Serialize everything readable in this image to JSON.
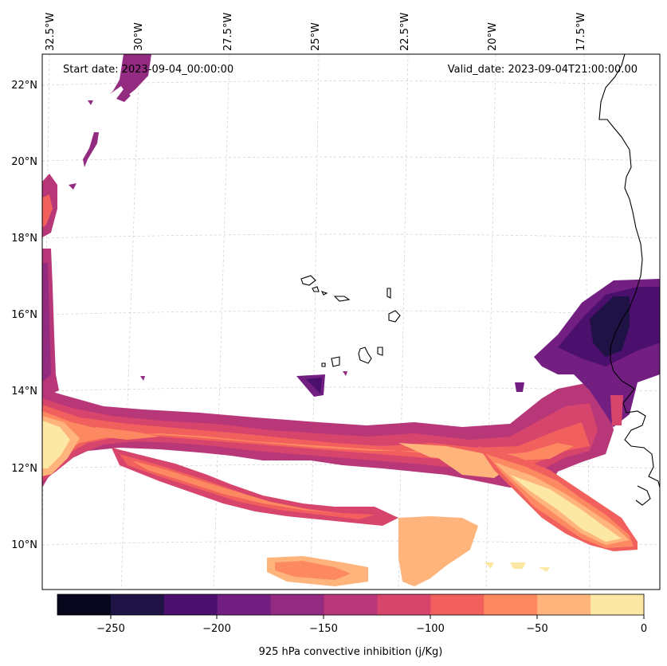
{
  "header": {
    "start_date": "Start date: 2023-09-04_00:00:00",
    "valid_date": "Valid_date: 2023-09-04T21:00:00.00"
  },
  "longitude_labels": [
    "32.5°W",
    "30°W",
    "27.5°W",
    "25°W",
    "22.5°W",
    "20°W",
    "17.5°W"
  ],
  "latitude_labels": [
    "22°N",
    "20°N",
    "18°N",
    "16°N",
    "14°N",
    "12°N",
    "10°N"
  ],
  "colorbar": {
    "label": "925 hPa convective inhibition (j/Kg)",
    "ticks": [
      "−250",
      "−200",
      "−150",
      "−100",
      "−50",
      "0"
    ],
    "levels": [
      -275,
      -250,
      -225,
      -200,
      -175,
      -150,
      -125,
      -100,
      -75,
      -50,
      -25,
      0
    ],
    "colors": [
      "#07061c",
      "#1f1245",
      "#4b0f6d",
      "#721f81",
      "#932b80",
      "#b73779",
      "#d8456c",
      "#f1605d",
      "#fc8961",
      "#feb47b",
      "#fde7a4"
    ]
  },
  "colors": {
    "coast": "#000000",
    "grid": "#cccccc",
    "frame": "#000000"
  }
}
